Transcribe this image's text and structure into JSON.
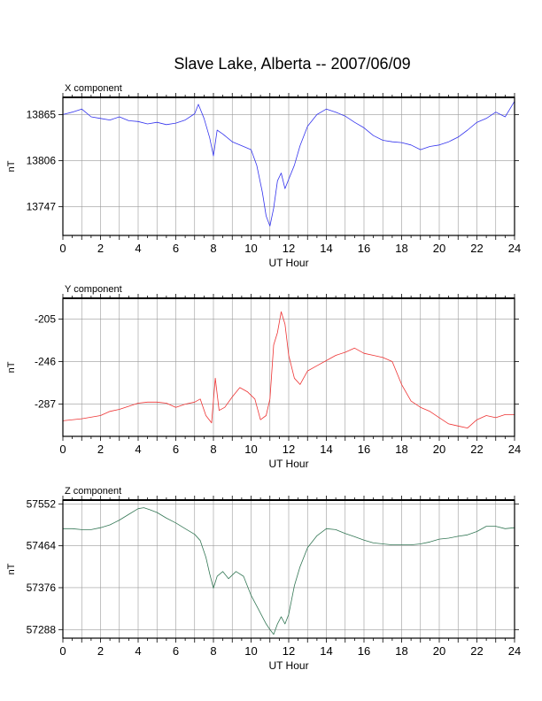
{
  "page": {
    "title": "Slave Lake, Alberta -- 2007/06/09"
  },
  "chart_data": [
    {
      "type": "line",
      "title": "X component",
      "xlabel": "UT Hour",
      "ylabel": "nT",
      "xlim": [
        0,
        24
      ],
      "ylim": [
        13710,
        13887
      ],
      "xticks": [
        0,
        2,
        4,
        6,
        8,
        10,
        12,
        14,
        16,
        18,
        20,
        22,
        24
      ],
      "yticks": [
        13865,
        13806,
        13747
      ],
      "grid": true,
      "series": [
        {
          "color": "#3333ee",
          "x": [
            0,
            0.5,
            1,
            1.5,
            2,
            2.5,
            3,
            3.5,
            4,
            4.5,
            5,
            5.5,
            6,
            6.5,
            7,
            7.2,
            7.5,
            7.8,
            8,
            8.2,
            8.5,
            9,
            9.5,
            10,
            10.3,
            10.6,
            10.8,
            11,
            11.2,
            11.4,
            11.6,
            11.8,
            12,
            12.3,
            12.6,
            13,
            13.5,
            14,
            14.5,
            15,
            15.5,
            16,
            16.5,
            17,
            17.5,
            18,
            18.5,
            19,
            19.5,
            20,
            20.5,
            21,
            21.5,
            22,
            22.5,
            23,
            23.5,
            24
          ],
          "values": [
            13865,
            13868,
            13872,
            13862,
            13860,
            13858,
            13862,
            13857,
            13856,
            13853,
            13855,
            13852,
            13854,
            13858,
            13866,
            13878,
            13860,
            13835,
            13812,
            13845,
            13840,
            13830,
            13825,
            13820,
            13800,
            13765,
            13735,
            13722,
            13745,
            13780,
            13790,
            13770,
            13782,
            13800,
            13825,
            13850,
            13865,
            13872,
            13868,
            13863,
            13855,
            13848,
            13838,
            13832,
            13830,
            13829,
            13826,
            13820,
            13824,
            13826,
            13830,
            13836,
            13845,
            13855,
            13860,
            13868,
            13862,
            13882
          ]
        }
      ]
    },
    {
      "type": "line",
      "title": "Y component",
      "xlabel": "UT Hour",
      "ylabel": "nT",
      "xlim": [
        0,
        24
      ],
      "ylim": [
        -318,
        -185
      ],
      "xticks": [
        0,
        2,
        4,
        6,
        8,
        10,
        12,
        14,
        16,
        18,
        20,
        22,
        24
      ],
      "yticks": [
        -205,
        -246,
        -287
      ],
      "grid": true,
      "series": [
        {
          "color": "#ee3333",
          "x": [
            0,
            1,
            2,
            2.5,
            3,
            3.5,
            4,
            4.5,
            5,
            5.5,
            6,
            6.5,
            7,
            7.3,
            7.6,
            7.9,
            8.1,
            8.3,
            8.6,
            9,
            9.4,
            9.8,
            10.2,
            10.5,
            10.8,
            11,
            11.2,
            11.4,
            11.6,
            11.8,
            12,
            12.3,
            12.6,
            13,
            13.5,
            14,
            14.5,
            15,
            15.5,
            16,
            16.5,
            17,
            17.5,
            18,
            18.5,
            19,
            19.5,
            20,
            20.5,
            21,
            21.5,
            22,
            22.5,
            23,
            23.5,
            24
          ],
          "values": [
            -303,
            -301,
            -298,
            -294,
            -292,
            -289,
            -286,
            -285,
            -285,
            -286,
            -290,
            -287,
            -285,
            -282,
            -298,
            -305,
            -262,
            -293,
            -290,
            -280,
            -271,
            -275,
            -282,
            -302,
            -298,
            -282,
            -230,
            -218,
            -198,
            -210,
            -240,
            -262,
            -268,
            -255,
            -250,
            -245,
            -240,
            -237,
            -233,
            -238,
            -240,
            -242,
            -246,
            -268,
            -284,
            -290,
            -294,
            -300,
            -306,
            -308,
            -310,
            -302,
            -298,
            -300,
            -297,
            -297
          ]
        }
      ]
    },
    {
      "type": "line",
      "title": "Z component",
      "xlabel": "UT Hour",
      "ylabel": "nT",
      "xlim": [
        0,
        24
      ],
      "ylim": [
        57270,
        57560
      ],
      "xticks": [
        0,
        2,
        4,
        6,
        8,
        10,
        12,
        14,
        16,
        18,
        20,
        22,
        24
      ],
      "yticks": [
        57552,
        57464,
        57376,
        57288
      ],
      "grid": true,
      "series": [
        {
          "color": "#337755",
          "x": [
            0,
            0.5,
            1,
            1.5,
            2,
            2.5,
            3,
            3.5,
            4,
            4.3,
            4.6,
            5,
            5.5,
            6,
            6.5,
            7,
            7.3,
            7.6,
            7.8,
            8,
            8.2,
            8.5,
            8.8,
            9.2,
            9.6,
            10,
            10.4,
            10.8,
            11,
            11.2,
            11.4,
            11.6,
            11.8,
            12,
            12.3,
            12.6,
            13,
            13.5,
            14,
            14.5,
            15,
            15.5,
            16,
            16.5,
            17,
            17.5,
            18,
            18.5,
            19,
            19.5,
            20,
            20.5,
            21,
            21.5,
            22,
            22.5,
            23,
            23.5,
            24
          ],
          "values": [
            57500,
            57500,
            57498,
            57498,
            57502,
            57508,
            57518,
            57530,
            57542,
            57544,
            57540,
            57534,
            57522,
            57512,
            57500,
            57488,
            57475,
            57440,
            57405,
            57375,
            57400,
            57410,
            57395,
            57410,
            57400,
            57360,
            57330,
            57300,
            57288,
            57278,
            57300,
            57315,
            57300,
            57320,
            57380,
            57420,
            57460,
            57485,
            57500,
            57498,
            57490,
            57483,
            57476,
            57470,
            57468,
            57466,
            57466,
            57466,
            57468,
            57472,
            57478,
            57480,
            57484,
            57487,
            57494,
            57505,
            57505,
            57500,
            57502
          ]
        }
      ]
    }
  ]
}
